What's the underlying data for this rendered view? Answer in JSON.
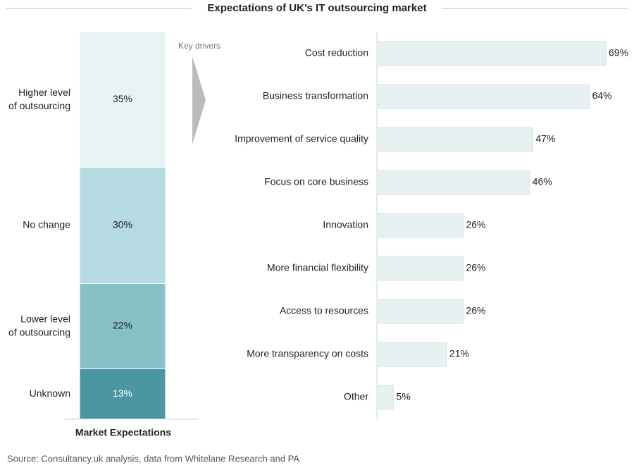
{
  "title": "Expectations of UK’s IT outsourcing market",
  "source": "Source: Consultancy.uk analysis, data from Whitelane Research and PA",
  "chart_data": [
    {
      "type": "stacked_bar",
      "x_label": "Market Expectations",
      "categories": [
        "Higher level of outsourcing",
        "No change",
        "Lower level of outsourcing",
        "Unknown"
      ],
      "values": [
        35,
        30,
        22,
        13
      ],
      "value_labels": [
        "35%",
        "30%",
        "22%",
        "13%"
      ],
      "colors": [
        "#e9f2f3",
        "#b5dae1",
        "#88c0c9",
        "#4a97a3"
      ]
    },
    {
      "type": "bar",
      "label": "Key drivers",
      "categories": [
        "Cost reduction",
        "Business transformation",
        "Improvement of service quality",
        "Focus on core business",
        "Innovation",
        "More financial flexibility",
        "Access to resources",
        "More transparency on costs",
        "Other"
      ],
      "values": [
        69,
        64,
        47,
        46,
        26,
        26,
        26,
        21,
        5
      ],
      "value_labels": [
        "69%",
        "64%",
        "47%",
        "46%",
        "26%",
        "26%",
        "26%",
        "21%",
        "5%"
      ],
      "color": "#e7f1f2"
    }
  ]
}
